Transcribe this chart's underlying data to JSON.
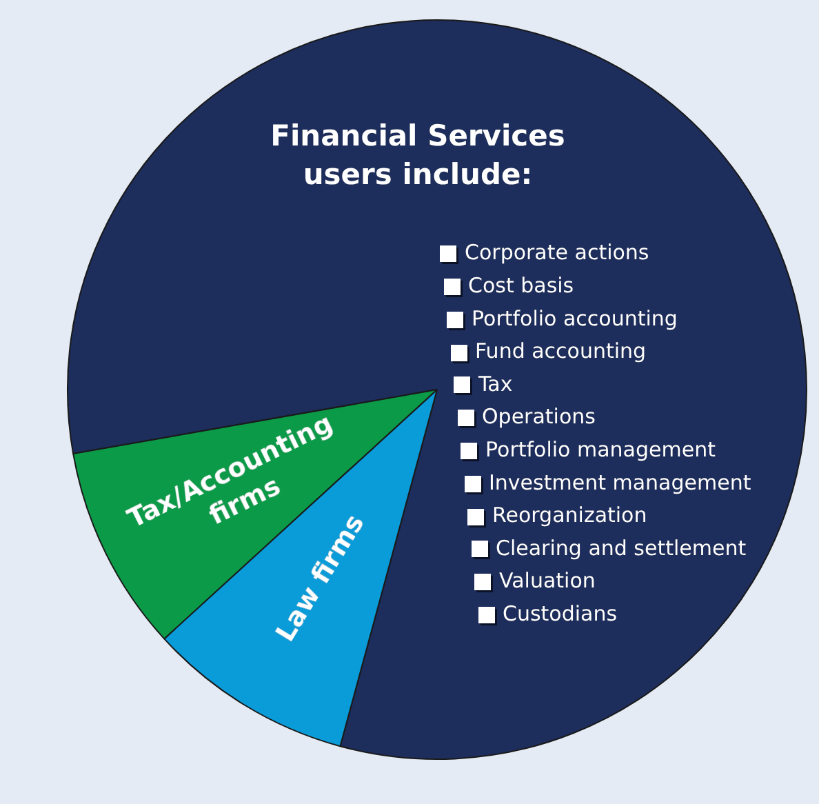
{
  "chart_data": {
    "type": "pie",
    "title": "Financial Services users include:",
    "categories": [
      null,
      "Law firms",
      "Tax/Accounting firms"
    ],
    "values": [
      82,
      9,
      9
    ],
    "colors": [
      "#1d2d5c",
      "#0a9bd9",
      "#0b9a47"
    ],
    "legend": false,
    "annotations": [
      "Corporate actions",
      "Cost basis",
      "Portfolio accounting",
      "Fund accounting",
      "Tax",
      "Operations",
      "Portfolio management",
      "Investment management",
      "Reorganization",
      "Clearing and settlement",
      "Valuation",
      "Custodians"
    ]
  }
}
